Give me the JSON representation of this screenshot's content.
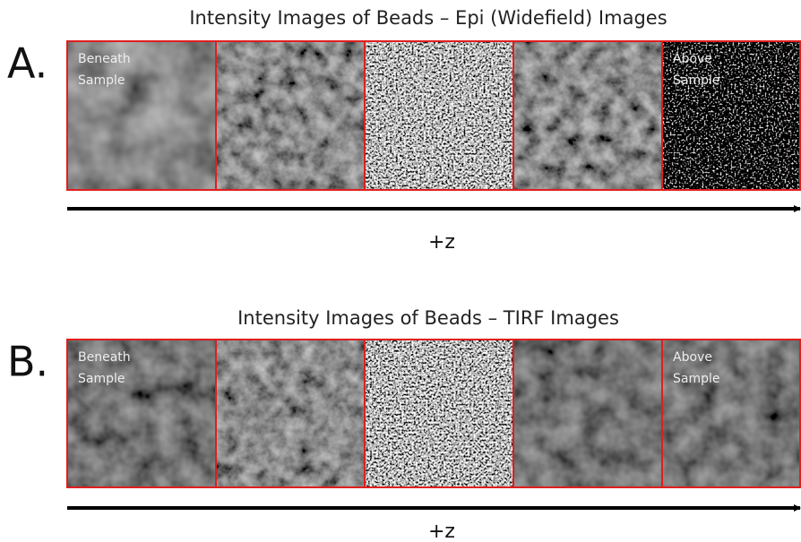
{
  "panels": [
    {
      "label": "A.",
      "title": "Intensity Images of Beads – Epi (Widefield) Images",
      "left_caption": [
        "Beneath",
        "Sample"
      ],
      "right_caption": [
        "Above",
        "Sample"
      ],
      "axis_label": "+z"
    },
    {
      "label": "B.",
      "title": "Intensity Images of Beads – TIRF Images",
      "left_caption": [
        "Beneath",
        "Sample"
      ],
      "right_caption": [
        "Above",
        "Sample"
      ],
      "axis_label": "+z"
    }
  ]
}
